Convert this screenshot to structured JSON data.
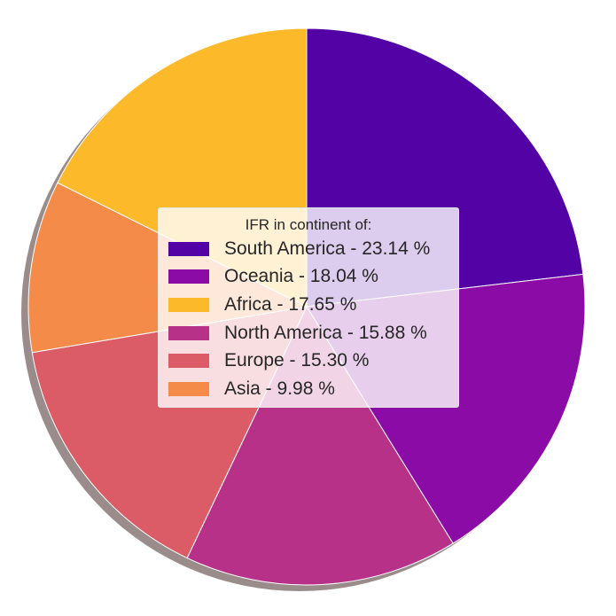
{
  "chart_data": {
    "type": "pie",
    "title": "",
    "legend": {
      "title": "IFR in continent of:",
      "placement": "center"
    },
    "shadow": true,
    "start_angle_deg": 90,
    "direction": "clockwise",
    "slices": [
      {
        "label": "South America - 23.14 %",
        "name": "South America",
        "value": 23.14,
        "color": "#5303a5"
      },
      {
        "label": "Oceania - 18.04 %",
        "name": "Oceania",
        "value": 18.04,
        "color": "#8a0ba6"
      },
      {
        "label": "North America - 15.88 %",
        "name": "North America",
        "value": 15.88,
        "color": "#b73189"
      },
      {
        "label": "Europe - 15.30 %",
        "name": "Europe",
        "value": 15.3,
        "color": "#db5b67"
      },
      {
        "label": "Asia - 9.98 %",
        "name": "Asia",
        "value": 9.98,
        "color": "#f48b49"
      },
      {
        "label": "Africa - 17.65 %",
        "name": "Africa",
        "value": 17.65,
        "color": "#fcba2b"
      }
    ],
    "legend_order": [
      "South America",
      "Oceania",
      "Africa",
      "North America",
      "Europe",
      "Asia"
    ]
  }
}
